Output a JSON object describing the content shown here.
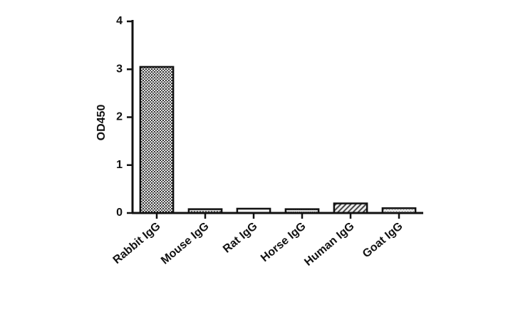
{
  "chart_data": {
    "type": "bar",
    "y_label": "OD450",
    "categories": [
      "Rabbit IgG",
      "Mouse IgG",
      "Rat IgG",
      "Horse IgG",
      "Human IgG",
      "Goat IgG"
    ],
    "values": [
      3.05,
      0.08,
      0.09,
      0.08,
      0.2,
      0.1
    ],
    "ylim": [
      0,
      4
    ],
    "yticks": [
      0,
      1,
      2,
      3,
      4
    ],
    "grid": false
  }
}
